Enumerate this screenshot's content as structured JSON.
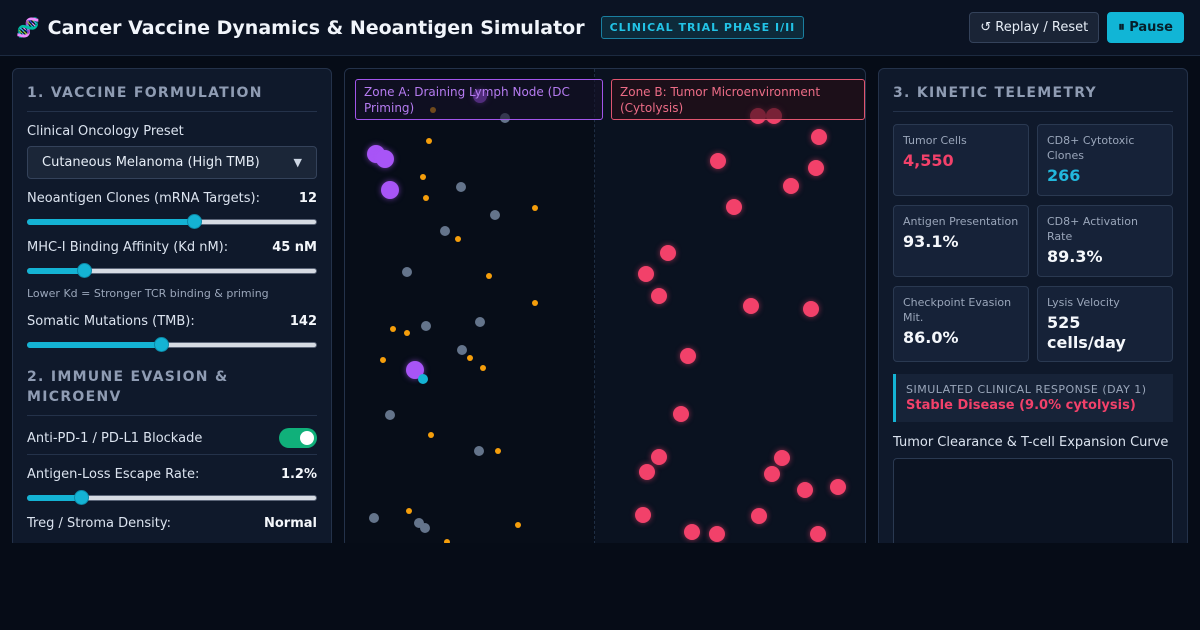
{
  "header": {
    "icon": "dna-icon",
    "title": "Cancer Vaccine Dynamics & Neoantigen Simulator",
    "badge": "CLINICAL TRIAL PHASE I/II",
    "replay_label": "↺ Replay / Reset",
    "pause_label": "⏸ Pause"
  },
  "left": {
    "section1_title": "1. VACCINE FORMULATION",
    "preset_label": "Clinical Oncology Preset",
    "preset_value": "Cutaneous Melanoma (High TMB)",
    "neoantigen": {
      "label": "Neoantigen Clones (mRNA Targets):",
      "value": "12",
      "fraction": 0.58
    },
    "mhc": {
      "label": "MHC-I Binding Affinity (Kd nM):",
      "value": "45 nM",
      "fraction": 0.18,
      "hint": "Lower Kd = Stronger TCR binding & priming"
    },
    "tmb": {
      "label": "Somatic Mutations (TMB):",
      "value": "142",
      "fraction": 0.46
    },
    "section2_title": "2. IMMUNE EVASION & MICROENV",
    "pd1_label": "Anti-PD-1 / PD-L1 Blockade",
    "pd1_on": true,
    "escape": {
      "label": "Antigen-Loss Escape Rate:",
      "value": "1.2%",
      "fraction": 0.17
    },
    "treg": {
      "label": "Treg / Stroma Density:",
      "value": "Normal"
    }
  },
  "sim": {
    "zone_a": "Zone A: Draining Lymph Node (DC Priming)",
    "zone_b": "Zone B: Tumor Microenvironment (Cytolysis)"
  },
  "right": {
    "section3_title": "3. KINETIC TELEMETRY",
    "metrics": [
      {
        "label": "Tumor Cells",
        "value": "4,550"
      },
      {
        "label": "CD8+ Cytotoxic Clones",
        "value": "266"
      },
      {
        "label": "Antigen Presentation",
        "value": "93.1%"
      },
      {
        "label": "CD8+ Activation Rate",
        "value": "89.3%"
      },
      {
        "label": "Checkpoint Evasion Mit.",
        "value": "86.0%"
      },
      {
        "label": "Lysis Velocity",
        "value": "525 cells/day"
      }
    ],
    "response_label": "SIMULATED CLINICAL RESPONSE (DAY 1)",
    "response_value": "Stable Disease (9.0% cytolysis)",
    "curve_label": "Tumor Clearance & T-cell Expansion Curve"
  },
  "colors": {
    "accent": "#14b3d4",
    "tumor": "#f2416a",
    "dc": "#a855f7",
    "antigen": "#f59e0b",
    "tcell": "#64748b",
    "toggle_on": "#10b07a"
  }
}
